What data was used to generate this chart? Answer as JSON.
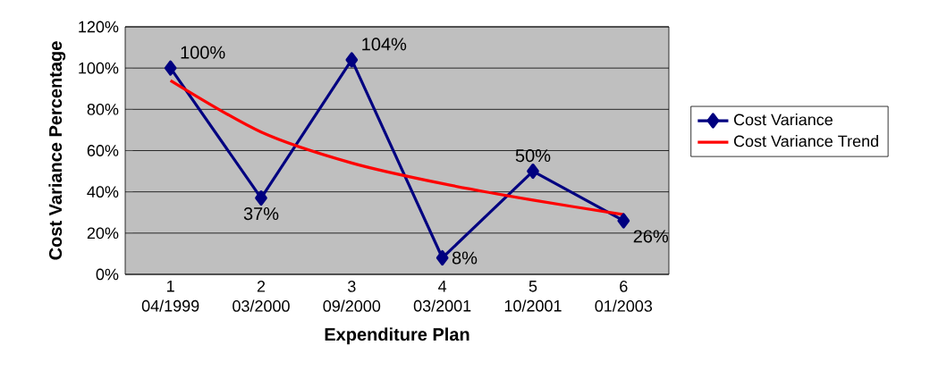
{
  "chart_data": {
    "type": "line",
    "xlabel": "Expenditure Plan",
    "ylabel": "Cost Variance Percentage",
    "categories": [
      "1 04/1999",
      "2 03/2000",
      "3 09/2000",
      "4 03/2001",
      "5 10/2001",
      "6 01/2003"
    ],
    "series": [
      {
        "name": "Cost Variance",
        "color": "#000080",
        "marker": "diamond",
        "values": [
          100,
          37,
          104,
          8,
          50,
          26
        ],
        "value_labels": [
          "100%",
          "37%",
          "104%",
          "8%",
          "50%",
          "26%"
        ]
      },
      {
        "name": "Cost Variance Trend",
        "color": "#ff0000",
        "marker": "none",
        "values": [
          94,
          69,
          54,
          44,
          36,
          29
        ]
      }
    ],
    "ylim": [
      0,
      120
    ],
    "yticks": [
      {
        "value": 0,
        "label": "0%"
      },
      {
        "value": 20,
        "label": "20%"
      },
      {
        "value": 40,
        "label": "40%"
      },
      {
        "value": 60,
        "label": "60%"
      },
      {
        "value": 80,
        "label": "80%"
      },
      {
        "value": 100,
        "label": "100%"
      },
      {
        "value": 120,
        "label": "120%"
      }
    ],
    "grid": "y",
    "legend": "right"
  }
}
